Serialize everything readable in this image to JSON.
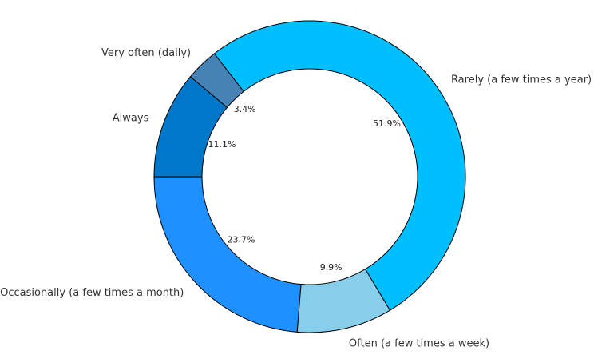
{
  "chart_data": {
    "type": "donut",
    "categories": [
      "Rarely (a few times a year)",
      "Very often (daily)",
      "Always",
      "Occasionally (a few times a month)",
      "Often (a few times a week)"
    ],
    "values": [
      51.9,
      3.4,
      11.1,
      23.7,
      9.9
    ],
    "value_labels": [
      "51.9%",
      "3.4%",
      "11.1%",
      "23.7%",
      "9.9%"
    ],
    "colors": [
      "#00bfff",
      "#4682b4",
      "#0077c8",
      "#1e90ff",
      "#87ceeb"
    ]
  }
}
